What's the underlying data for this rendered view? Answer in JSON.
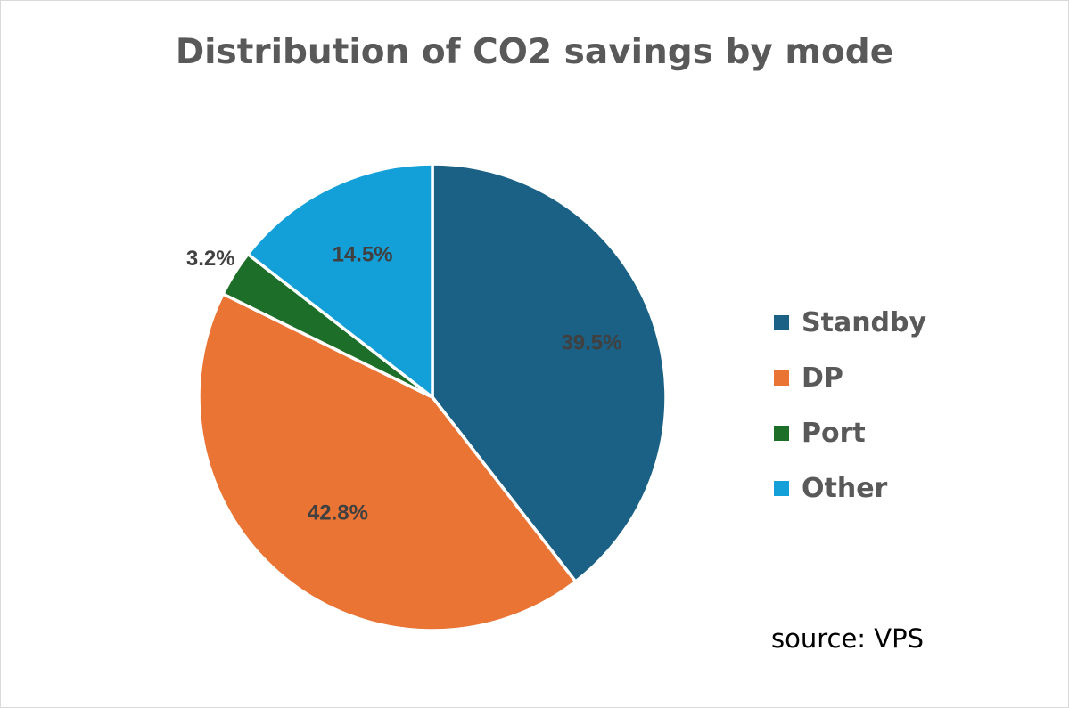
{
  "chart_data": {
    "type": "pie",
    "title": "Distribution of CO2 savings by mode",
    "categories": [
      "Standby",
      "DP",
      "Port",
      "Other"
    ],
    "values": [
      39.5,
      42.8,
      3.2,
      14.5
    ],
    "labels": [
      "39.5%",
      "42.8%",
      "3.2%",
      "14.5%"
    ],
    "colors": [
      "#1a6185",
      "#e97434",
      "#1c6e28",
      "#139fd7"
    ],
    "start_angle_deg": 0,
    "direction": "clockwise",
    "legend_position": "right",
    "source": "source: VPS"
  }
}
